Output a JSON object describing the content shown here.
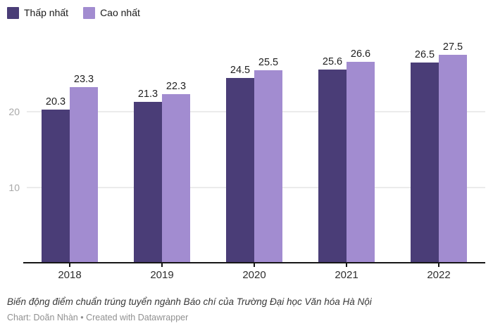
{
  "chart_data": {
    "type": "bar",
    "title": "Biến động điểm chuẩn trúng tuyển ngành Báo chí của Trường Đại học Văn hóa Hà Nội",
    "categories": [
      "2018",
      "2019",
      "2020",
      "2021",
      "2022"
    ],
    "series": [
      {
        "name": "Thấp nhất",
        "color": "#4a3d77",
        "values": [
          20.3,
          21.3,
          24.5,
          25.6,
          26.5
        ]
      },
      {
        "name": "Cao nhất",
        "color": "#a28cd0",
        "values": [
          23.3,
          22.3,
          25.5,
          26.6,
          27.5
        ]
      }
    ],
    "ylim": [
      0,
      30
    ],
    "yticks": [
      10,
      20
    ],
    "grid": "horizontal",
    "legend_position": "top-left",
    "value_labels": true
  },
  "legend": {
    "items": [
      {
        "label": "Thấp nhất",
        "color": "#4a3d77"
      },
      {
        "label": "Cao nhất",
        "color": "#a28cd0"
      }
    ]
  },
  "footer": {
    "title": "Biến động điểm chuẩn trúng tuyển ngành Báo chí của Trường Đại học Văn hóa Hà Nội",
    "byline": "Chart: Doãn Nhàn • Created with Datawrapper"
  },
  "colors": {
    "grid": "#ebebeb",
    "axis": "#161616",
    "ytick_label": "#a8a8a8",
    "xtick_label": "#2e2e2e",
    "value_label": "#1f1f1f"
  }
}
